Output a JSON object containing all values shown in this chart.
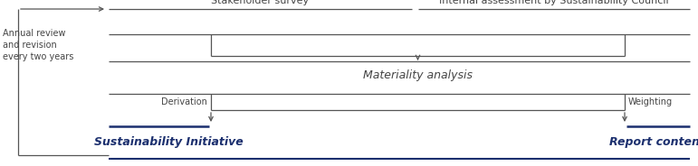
{
  "fig_width": 7.71,
  "fig_height": 1.84,
  "dpi": 100,
  "bg_color": "#ffffff",
  "line_color": "#555555",
  "dark_blue": "#1b2f6e",
  "text_color": "#444444",
  "annual_review_text": "Annual review\nand revision\nevery two years",
  "stakeholder_label": "Stakeholder survey",
  "internal_label": "Internal assessment by Sustainability Council",
  "materiality_label": "Materiality analysis",
  "derivation_label": "Derivation",
  "weighting_label": "Weighting",
  "sustain_label": "Sustainability Initiative",
  "report_label": "Report content"
}
